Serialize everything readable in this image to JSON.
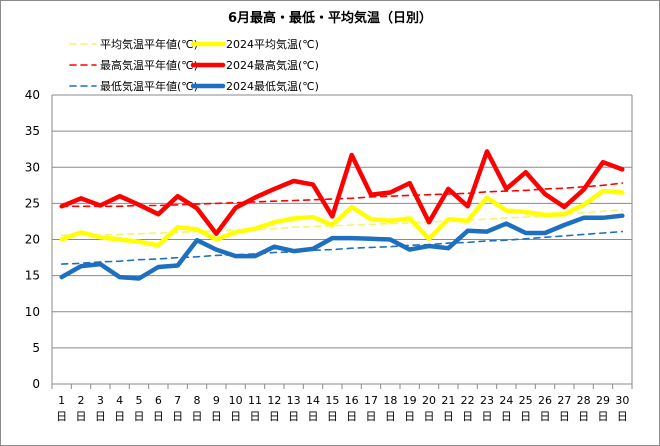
{
  "chart_data": {
    "type": "line",
    "title": "6月最高・最低・平均気温（日別）",
    "xlabel": "",
    "ylabel": "",
    "x": [
      1,
      2,
      3,
      4,
      5,
      6,
      7,
      8,
      9,
      10,
      11,
      12,
      13,
      14,
      15,
      16,
      17,
      18,
      19,
      20,
      21,
      22,
      23,
      24,
      25,
      26,
      27,
      28,
      29,
      30
    ],
    "x_tick_suffix": "日",
    "ylim": [
      0,
      40
    ],
    "yticks": [
      0,
      5,
      10,
      15,
      20,
      25,
      30,
      35,
      40
    ],
    "grid": true,
    "legend_position": "top-left",
    "series": [
      {
        "name": "平均気温平年値(℃)",
        "color": "#f4f46e",
        "style": "dashed",
        "values": [
          20.6,
          20.6,
          20.6,
          20.7,
          20.8,
          20.9,
          21.0,
          21.1,
          21.2,
          21.3,
          21.4,
          21.5,
          21.7,
          21.8,
          21.9,
          22.0,
          22.1,
          22.2,
          22.3,
          22.4,
          22.6,
          22.7,
          22.8,
          23.0,
          23.1,
          23.3,
          23.5,
          23.7,
          23.9,
          24.1
        ]
      },
      {
        "name": "2024平均気温(℃)",
        "color": "#ffff00",
        "style": "solid",
        "values": [
          20.0,
          21.0,
          20.3,
          20.0,
          19.7,
          19.2,
          21.7,
          21.4,
          20.0,
          21.0,
          21.5,
          22.4,
          22.9,
          23.1,
          22.0,
          24.5,
          22.8,
          22.6,
          22.9,
          20.1,
          22.8,
          22.6,
          25.8,
          24.0,
          23.8,
          23.4,
          23.5,
          24.8,
          26.7,
          26.5
        ]
      },
      {
        "name": "最高気温平年値(℃)",
        "color": "#ff0000",
        "style": "dashed",
        "values": [
          24.6,
          24.6,
          24.6,
          24.6,
          24.7,
          24.7,
          24.8,
          24.9,
          25.0,
          25.1,
          25.2,
          25.3,
          25.4,
          25.5,
          25.6,
          25.7,
          25.9,
          26.0,
          26.1,
          26.2,
          26.3,
          26.4,
          26.6,
          26.7,
          26.8,
          27.0,
          27.1,
          27.3,
          27.5,
          27.8
        ]
      },
      {
        "name": "2024最高気温(℃)",
        "color": "#ff0000",
        "style": "solid",
        "values": [
          24.6,
          25.7,
          24.7,
          26.0,
          24.8,
          23.5,
          26.0,
          24.3,
          20.8,
          24.4,
          25.8,
          27.0,
          28.1,
          27.6,
          23.2,
          31.7,
          26.2,
          26.5,
          27.8,
          22.4,
          27.0,
          24.6,
          32.2,
          27.0,
          29.3,
          26.3,
          24.5,
          26.9,
          30.7,
          29.7
        ]
      },
      {
        "name": "最低気温平年値(℃)",
        "color": "#1f6fc0",
        "style": "dashed",
        "values": [
          16.6,
          16.7,
          16.9,
          17.0,
          17.2,
          17.3,
          17.5,
          17.6,
          17.8,
          17.9,
          18.0,
          18.2,
          18.3,
          18.5,
          18.6,
          18.8,
          18.9,
          19.0,
          19.2,
          19.3,
          19.5,
          19.6,
          19.8,
          19.9,
          20.1,
          20.3,
          20.5,
          20.7,
          20.9,
          21.1
        ]
      },
      {
        "name": "2024最低気温(℃)",
        "color": "#1f6fc0",
        "style": "solid",
        "values": [
          14.8,
          16.3,
          16.6,
          14.8,
          14.6,
          16.2,
          16.4,
          19.9,
          18.6,
          17.7,
          17.7,
          19.0,
          18.4,
          18.7,
          20.2,
          20.2,
          20.1,
          20.0,
          18.6,
          19.1,
          18.8,
          21.2,
          21.1,
          22.2,
          20.9,
          20.9,
          22.0,
          23.0,
          23.0,
          23.3
        ]
      }
    ]
  }
}
